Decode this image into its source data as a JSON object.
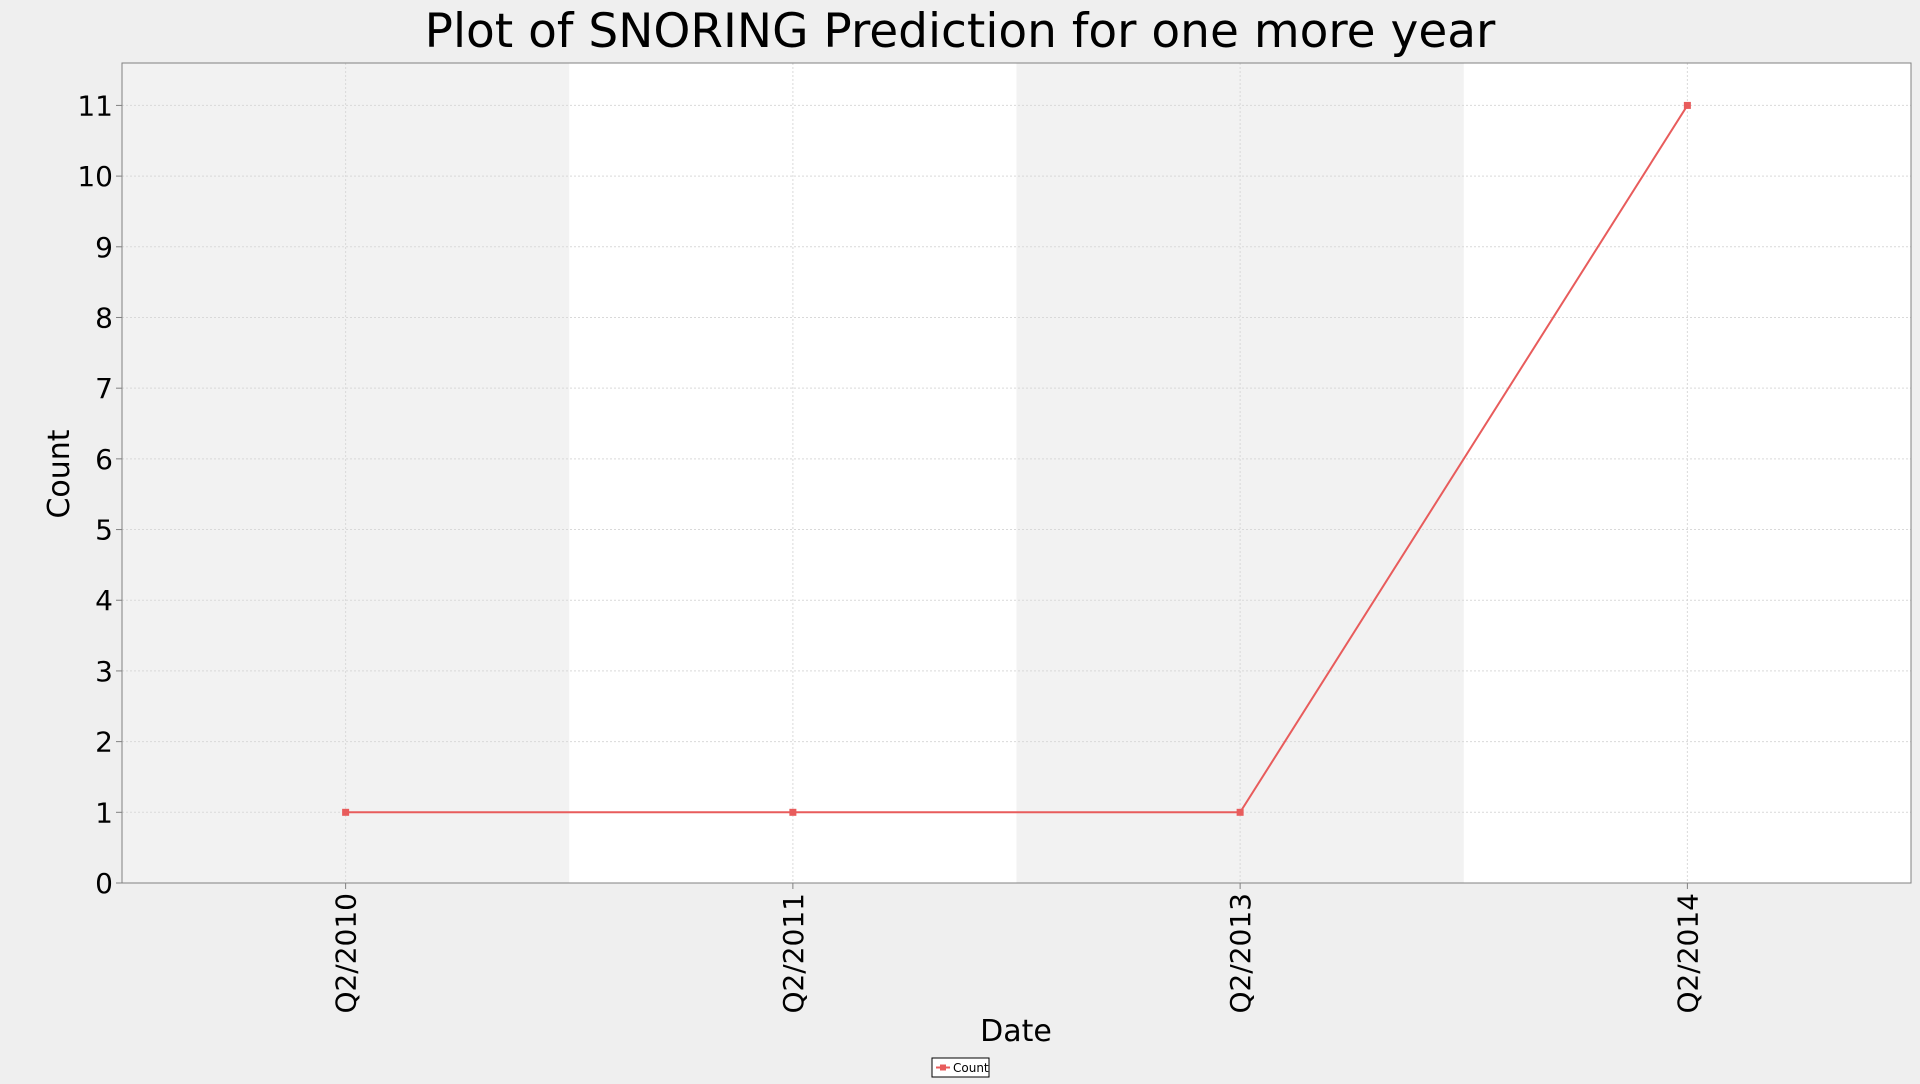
{
  "colors": {
    "page_background": "#efefef",
    "band_shaded": "#f2f2f2",
    "band_plain": "#ffffff",
    "gridline": "#d9d9d9",
    "axis": "#808080",
    "series_line": "#e85c5c",
    "text": "#000000"
  },
  "chart_data": {
    "type": "line",
    "title": "Plot of SNORING Prediction for one more year",
    "xlabel": "Date",
    "ylabel": "Count",
    "categories": [
      "Q2/2010",
      "Q2/2011",
      "Q2/2013",
      "Q2/2014"
    ],
    "series": [
      {
        "name": "Count",
        "values": [
          1,
          1,
          1,
          11
        ],
        "color": "#e85c5c",
        "marker": "square"
      }
    ],
    "ylim": [
      0,
      11.6
    ],
    "yticks": [
      0,
      1,
      2,
      3,
      4,
      5,
      6,
      7,
      8,
      9,
      10,
      11
    ],
    "grid": true,
    "alternating_bands": true,
    "x_tick_rotation": "vertical",
    "legend": {
      "position": "bottom-center",
      "entries": [
        "Count"
      ]
    }
  }
}
